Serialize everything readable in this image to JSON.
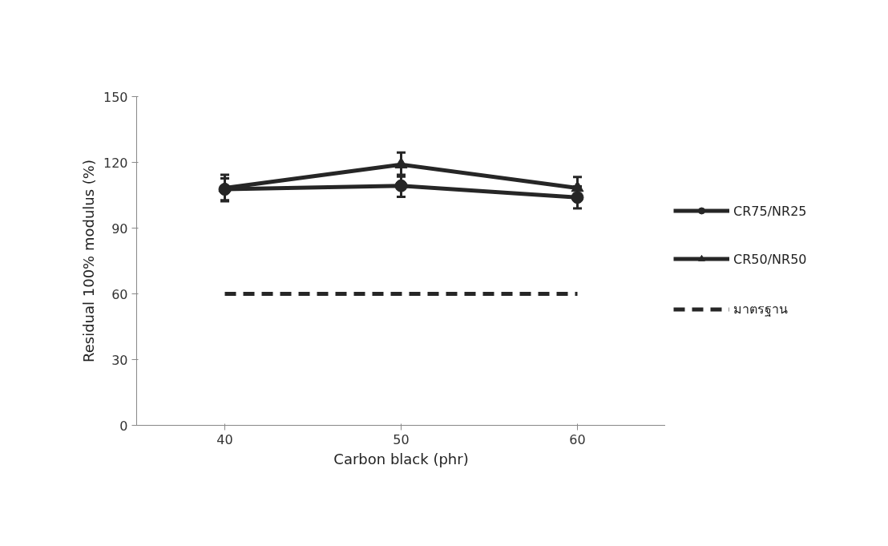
{
  "chart_data": {
    "type": "line",
    "xlabel": "Carbon black (phr)",
    "ylabel": "Residual 100% modulus (%)",
    "x": [
      40,
      50,
      60
    ],
    "series": [
      {
        "name": "CR75/NR25",
        "color": "#262626",
        "values": [
          107.7,
          109.3,
          104
        ],
        "errors": [
          5,
          5,
          5
        ],
        "marker": "circle",
        "line_style": "solid"
      },
      {
        "name": "CR50/NR50",
        "color": "#262626",
        "values": [
          108.3,
          119,
          108.3
        ],
        "errors": [
          6,
          5.5,
          5
        ],
        "marker": "triangle",
        "line_style": "solid"
      },
      {
        "name": "มาตรฐาน",
        "color": "#262626",
        "values": [
          60,
          60,
          60
        ],
        "marker": "none",
        "line_style": "dashed"
      }
    ],
    "xlim": [
      35,
      65
    ],
    "xticks": [
      40,
      50,
      60
    ],
    "ylim": [
      0,
      150
    ],
    "yticks": [
      0,
      30,
      60,
      90,
      120,
      150
    ],
    "grid": false,
    "legend": "right"
  }
}
